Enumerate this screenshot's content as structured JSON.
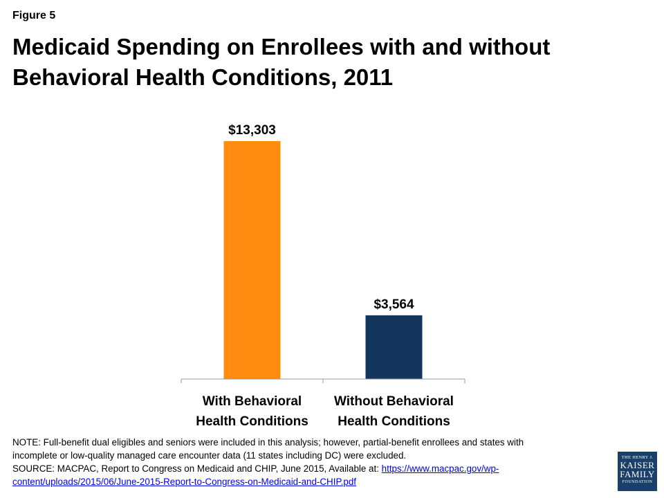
{
  "figure_label": "Figure 5",
  "title_line1": "Medicaid Spending on Enrollees with and without",
  "title_line2": "Behavioral Health Conditions, 2011",
  "chart_data": {
    "type": "bar",
    "title": "Medicaid Spending on Enrollees with and without Behavioral Health Conditions, 2011",
    "categories": [
      [
        "With Behavioral",
        "Health Conditions"
      ],
      [
        "Without Behavioral",
        "Health Conditions"
      ]
    ],
    "values": [
      13303,
      3564
    ],
    "data_labels": [
      "$13,303",
      "$3,564"
    ],
    "colors": [
      "#ff8c11",
      "#15365c"
    ],
    "ylim": [
      0,
      14000
    ],
    "grid": false,
    "legend": "none"
  },
  "note": {
    "line1": "NOTE: Full-benefit dual eligibles and seniors were included in this analysis; however, partial-benefit enrollees and states with",
    "line2": "incomplete or low-quality managed care encounter data (11 states including DC) were excluded.",
    "source_prefix": "SOURCE:  MACPAC, Report to Congress on Medicaid and CHIP, June 2015, Available at: ",
    "source_link_part1": "https://www.macpac.gov/wp-",
    "source_link_part2": "content/uploads/2015/06/June-2015-Report-to-Congress-on-Medicaid-and-CHIP.pdf"
  },
  "logo": {
    "line1": "THE HENRY J.",
    "line2": "KAISER",
    "line3": "FAMILY",
    "line4": "FOUNDATION"
  }
}
